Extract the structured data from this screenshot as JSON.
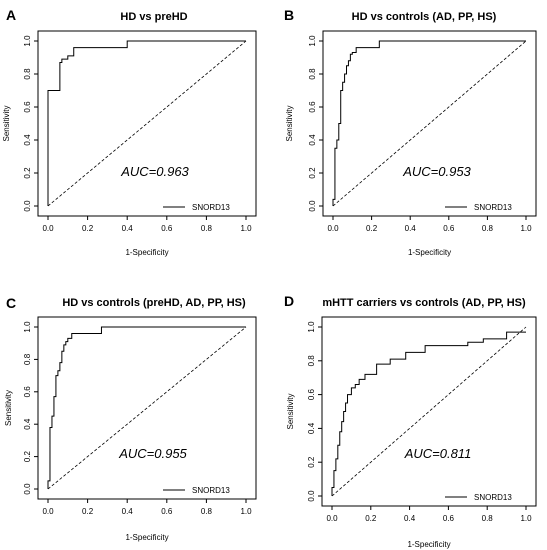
{
  "figure": {
    "panels": [
      {
        "letter": "A",
        "title": "HD vs preHD",
        "auc_text": "AUC=0.963"
      },
      {
        "letter": "B",
        "title": "HD vs controls (AD, PP, HS)",
        "auc_text": "AUC=0.953"
      },
      {
        "letter": "C",
        "title": "HD vs controls (preHD, AD, PP, HS)",
        "auc_text": "AUC=0.955"
      },
      {
        "letter": "D",
        "title": "mHTT carriers vs controls (AD, PP, HS)",
        "auc_text": "AUC=0.811"
      }
    ]
  },
  "chart_data": [
    {
      "type": "line",
      "title": "HD vs preHD",
      "xlabel": "1-Specificity",
      "ylabel": "Sensitivity",
      "xlim": [
        0,
        1
      ],
      "ylim": [
        0,
        1
      ],
      "xticks": [
        "0.0",
        "0.2",
        "0.4",
        "0.6",
        "0.8",
        "1.0"
      ],
      "yticks": [
        "0.0",
        "0.2",
        "0.4",
        "0.6",
        "0.8",
        "1.0"
      ],
      "grid": false,
      "legend_position": "bottom-right",
      "annotation": "AUC=0.963",
      "series": [
        {
          "name": "SNORD13",
          "style": "solid",
          "x": [
            0,
            0,
            0.06,
            0.06,
            0.07,
            0.07,
            0.1,
            0.1,
            0.13,
            0.13,
            0.4,
            0.4,
            1.0
          ],
          "y": [
            0,
            0.7,
            0.7,
            0.87,
            0.87,
            0.89,
            0.89,
            0.91,
            0.91,
            0.96,
            0.96,
            1.0,
            1.0
          ]
        },
        {
          "name": "",
          "style": "dashed",
          "x": [
            0,
            1
          ],
          "y": [
            0,
            1
          ]
        }
      ]
    },
    {
      "type": "line",
      "title": "HD vs controls (AD, PP, HS)",
      "xlabel": "1-Specificity",
      "ylabel": "Sensitivity",
      "xlim": [
        0,
        1
      ],
      "ylim": [
        0,
        1
      ],
      "xticks": [
        "0.0",
        "0.2",
        "0.4",
        "0.6",
        "0.8",
        "1.0"
      ],
      "yticks": [
        "0.0",
        "0.2",
        "0.4",
        "0.6",
        "0.8",
        "1.0"
      ],
      "grid": false,
      "legend_position": "bottom-right",
      "annotation": "AUC=0.953",
      "series": [
        {
          "name": "SNORD13",
          "style": "solid",
          "x": [
            0,
            0,
            0.01,
            0.01,
            0.02,
            0.02,
            0.03,
            0.03,
            0.04,
            0.04,
            0.05,
            0.05,
            0.06,
            0.06,
            0.07,
            0.07,
            0.08,
            0.08,
            0.09,
            0.09,
            0.1,
            0.1,
            0.12,
            0.12,
            0.24,
            0.24,
            1.0
          ],
          "y": [
            0,
            0.04,
            0.04,
            0.35,
            0.35,
            0.4,
            0.4,
            0.5,
            0.5,
            0.7,
            0.7,
            0.75,
            0.75,
            0.8,
            0.8,
            0.85,
            0.85,
            0.88,
            0.88,
            0.92,
            0.92,
            0.93,
            0.93,
            0.96,
            0.96,
            1.0,
            1.0
          ]
        },
        {
          "name": "",
          "style": "dashed",
          "x": [
            0,
            1
          ],
          "y": [
            0,
            1
          ]
        }
      ]
    },
    {
      "type": "line",
      "title": "HD vs controls (preHD, AD, PP, HS)",
      "xlabel": "1-Specificity",
      "ylabel": "Sensitivity",
      "xlim": [
        0,
        1
      ],
      "ylim": [
        0,
        1
      ],
      "xticks": [
        "0.0",
        "0.2",
        "0.4",
        "0.6",
        "0.8",
        "1.0"
      ],
      "yticks": [
        "0.0",
        "0.2",
        "0.4",
        "0.6",
        "0.8",
        "1.0"
      ],
      "grid": false,
      "legend_position": "bottom-right",
      "annotation": "AUC=0.955",
      "series": [
        {
          "name": "SNORD13",
          "style": "solid",
          "x": [
            0,
            0,
            0.01,
            0.01,
            0.02,
            0.02,
            0.03,
            0.03,
            0.04,
            0.04,
            0.05,
            0.05,
            0.06,
            0.06,
            0.07,
            0.07,
            0.08,
            0.08,
            0.09,
            0.09,
            0.1,
            0.1,
            0.12,
            0.12,
            0.27,
            0.27,
            1.0
          ],
          "y": [
            0,
            0.05,
            0.05,
            0.38,
            0.38,
            0.45,
            0.45,
            0.57,
            0.57,
            0.7,
            0.7,
            0.73,
            0.73,
            0.78,
            0.78,
            0.85,
            0.85,
            0.89,
            0.89,
            0.91,
            0.91,
            0.93,
            0.93,
            0.96,
            0.96,
            1.0,
            1.0
          ]
        },
        {
          "name": "",
          "style": "dashed",
          "x": [
            0,
            1
          ],
          "y": [
            0,
            1
          ]
        }
      ]
    },
    {
      "type": "line",
      "title": "mHTT carriers vs controls (AD, PP, HS)",
      "xlabel": "1-Specificity",
      "ylabel": "Sensitivity",
      "xlim": [
        0,
        1
      ],
      "ylim": [
        0,
        1
      ],
      "xticks": [
        "0.0",
        "0.2",
        "0.4",
        "0.6",
        "0.8",
        "1.0"
      ],
      "yticks": [
        "0.0",
        "0.2",
        "0.4",
        "0.6",
        "0.8",
        "1.0"
      ],
      "grid": false,
      "legend_position": "bottom-right",
      "annotation": "AUC=0.811",
      "series": [
        {
          "name": "SNORD13",
          "style": "solid",
          "x": [
            0,
            0,
            0.01,
            0.01,
            0.02,
            0.02,
            0.03,
            0.03,
            0.04,
            0.04,
            0.05,
            0.05,
            0.06,
            0.06,
            0.07,
            0.07,
            0.08,
            0.08,
            0.1,
            0.1,
            0.12,
            0.12,
            0.14,
            0.14,
            0.17,
            0.17,
            0.23,
            0.23,
            0.3,
            0.3,
            0.38,
            0.38,
            0.48,
            0.48,
            0.7,
            0.7,
            0.78,
            0.78,
            0.9,
            0.9,
            1.0
          ],
          "y": [
            0,
            0.05,
            0.05,
            0.15,
            0.15,
            0.22,
            0.22,
            0.3,
            0.3,
            0.38,
            0.38,
            0.44,
            0.44,
            0.5,
            0.5,
            0.55,
            0.55,
            0.6,
            0.6,
            0.64,
            0.64,
            0.66,
            0.66,
            0.69,
            0.69,
            0.72,
            0.72,
            0.78,
            0.78,
            0.81,
            0.81,
            0.85,
            0.85,
            0.89,
            0.89,
            0.91,
            0.91,
            0.93,
            0.93,
            0.97,
            0.97
          ]
        },
        {
          "name": "",
          "style": "dashed",
          "x": [
            0,
            1
          ],
          "y": [
            0,
            1
          ]
        }
      ]
    }
  ]
}
